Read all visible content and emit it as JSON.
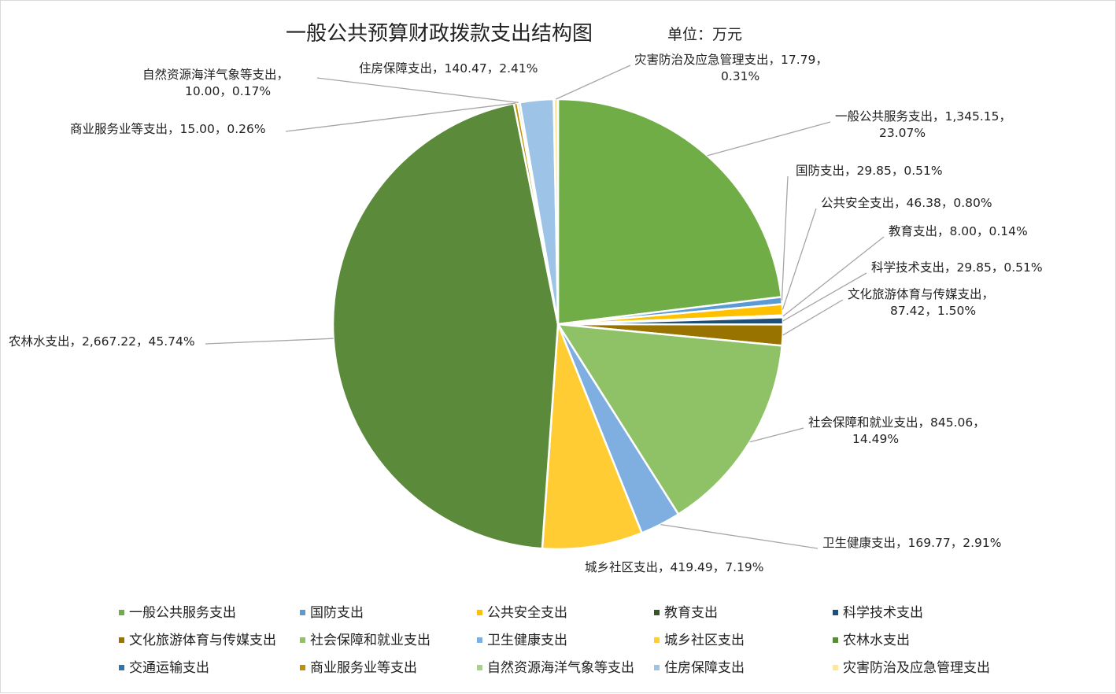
{
  "chart_data": {
    "type": "pie",
    "title": "一般公共预算财政拨款支出结构图",
    "unit": "单位：万元",
    "legend_position": "bottom",
    "slices": [
      {
        "name": "一般公共服务支出",
        "value": 1345.15,
        "percent": "23.07%",
        "color": "#70AD47",
        "label": [
          "一般公共服务支出，1,345.15，",
          "23.07%"
        ]
      },
      {
        "name": "国防支出",
        "value": 29.85,
        "percent": "0.51%",
        "color": "#5B9BD5",
        "label": [
          "国防支出，29.85，0.51%"
        ]
      },
      {
        "name": "公共安全支出",
        "value": 46.38,
        "percent": "0.80%",
        "color": "#FFC000",
        "label": [
          "公共安全支出，46.38，0.80%"
        ]
      },
      {
        "name": "教育支出",
        "value": 8.0,
        "percent": "0.14%",
        "color": "#375623",
        "label": [
          "教育支出，8.00，0.14%"
        ]
      },
      {
        "name": "科学技术支出",
        "value": 29.85,
        "percent": "0.51%",
        "color": "#1F4E79",
        "label": [
          "科学技术支出，29.85，0.51%"
        ]
      },
      {
        "name": "文化旅游体育与传媒支出",
        "value": 87.42,
        "percent": "1.50%",
        "color": "#997300",
        "label": [
          "文化旅游体育与传媒支出，",
          "87.42，1.50%"
        ]
      },
      {
        "name": "社会保障和就业支出",
        "value": 845.06,
        "percent": "14.49%",
        "color": "#8FC167",
        "label": [
          "社会保障和就业支出，845.06，",
          "14.49%"
        ]
      },
      {
        "name": "卫生健康支出",
        "value": 169.77,
        "percent": "2.91%",
        "color": "#7FAFE0",
        "label": [
          "卫生健康支出，169.77，2.91%"
        ]
      },
      {
        "name": "城乡社区支出",
        "value": 419.49,
        "percent": "7.19%",
        "color": "#FFCD33",
        "label": [
          "城乡社区支出，419.49，7.19%"
        ]
      },
      {
        "name": "农林水支出",
        "value": 2667.22,
        "percent": "45.74%",
        "color": "#5B8A3A",
        "label": [
          "农林水支出，2,667.22，45.74%"
        ]
      },
      {
        "name": "交通运输支出",
        "value": 0,
        "percent": "0.00%",
        "color": "#2E75B6",
        "label": []
      },
      {
        "name": "商业服务业等支出",
        "value": 15.0,
        "percent": "0.26%",
        "color": "#BF9000",
        "label": [
          "商业服务业等支出，15.00，0.26%"
        ]
      },
      {
        "name": "自然资源海洋气象等支出",
        "value": 10.0,
        "percent": "0.17%",
        "color": "#A9D18E",
        "label": [
          "自然资源海洋气象等支出，",
          "10.00，0.17%"
        ]
      },
      {
        "name": "住房保障支出",
        "value": 140.47,
        "percent": "2.41%",
        "color": "#9DC3E6",
        "label": [
          "住房保障支出，140.47，2.41%"
        ]
      },
      {
        "name": "灾害防治及应急管理支出",
        "value": 17.79,
        "percent": "0.31%",
        "color": "#FFE699",
        "label": [
          "灾害防治及应急管理支出，17.79，",
          "0.31%"
        ]
      }
    ]
  }
}
